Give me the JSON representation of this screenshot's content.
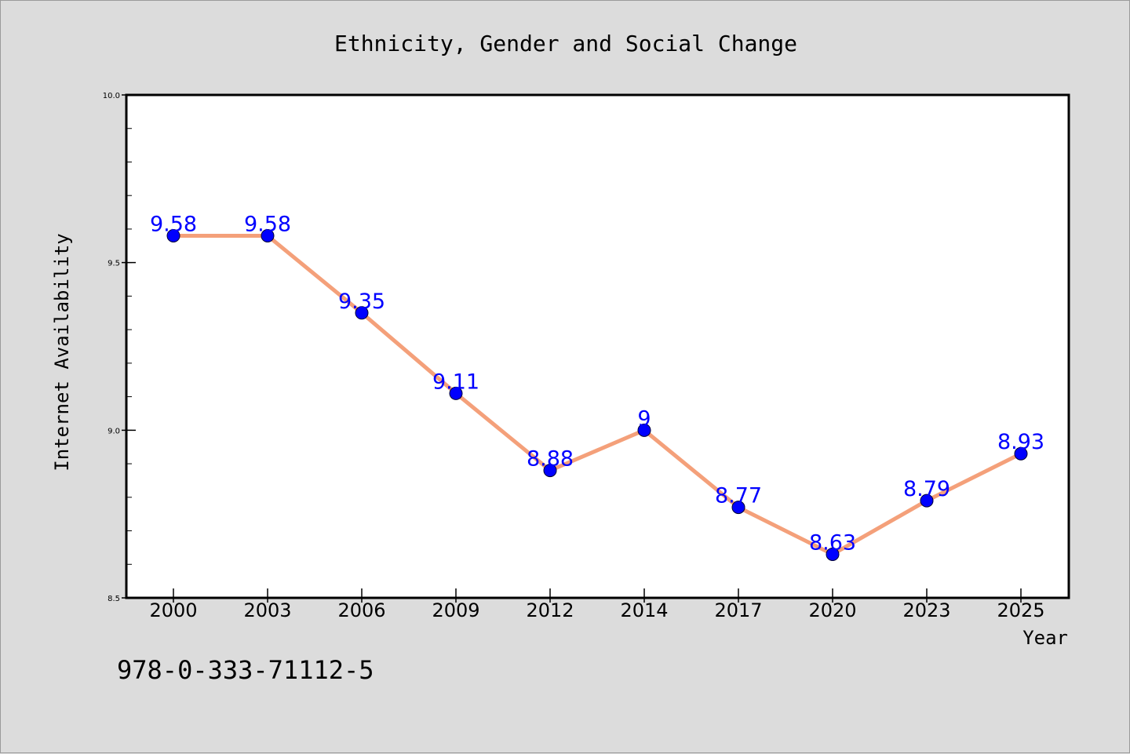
{
  "chart_data": {
    "type": "line",
    "title": "Ethnicity, Gender and Social Change",
    "xlabel": "Year",
    "ylabel": "Internet Availability",
    "categories": [
      "2000",
      "2003",
      "2006",
      "2009",
      "2012",
      "2014",
      "2017",
      "2020",
      "2023",
      "2025"
    ],
    "series": [
      {
        "values": [
          9.58,
          9.58,
          9.35,
          9.11,
          8.88,
          9,
          8.77,
          8.63,
          8.79,
          8.93
        ],
        "labels": [
          "9.58",
          "9.58",
          "9.35",
          "9.11",
          "8.88",
          "9",
          "8.77",
          "8.63",
          "8.79",
          "8.93"
        ],
        "line_color": "#f4a07a",
        "marker_color": "#0000ff"
      }
    ],
    "ylim": [
      8.5,
      10.0
    ],
    "yticks": [
      "8.5",
      "9.0",
      "9.5",
      "10.0"
    ],
    "grid": false,
    "plot_background": "#ffffff",
    "figure_background": "#dcdcdc"
  },
  "annotation": {
    "isbn": "978-0-333-71112-5"
  }
}
